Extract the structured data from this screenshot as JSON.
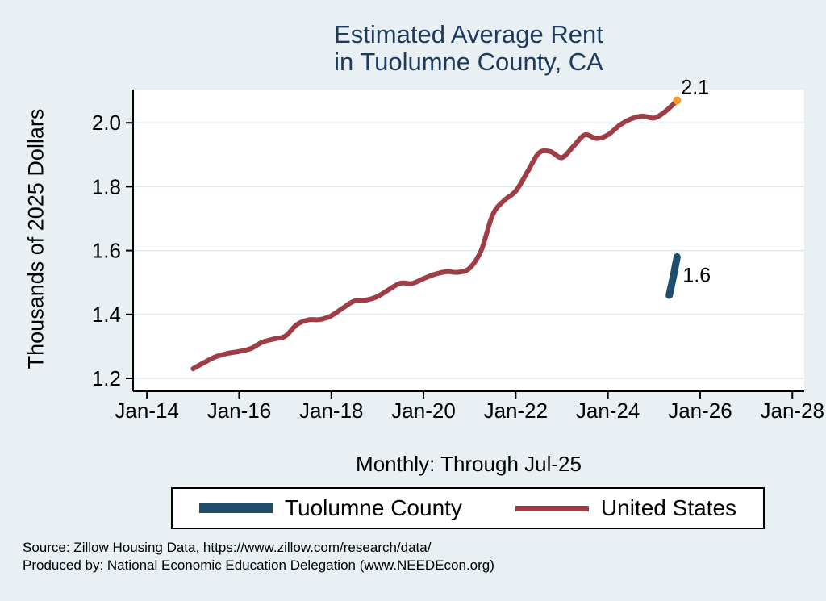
{
  "colors": {
    "background": "#e9f0f4",
    "plot_background": "#ffffff",
    "gridline": "#dce8ef",
    "axis": "#000000",
    "title_text": "#1e3a5e",
    "tuolumne_blue": "#1f4e6b",
    "us_red": "#9e3d45",
    "endpoint_orange": "#f59b22"
  },
  "title": {
    "line1": "Estimated Average Rent",
    "line2": "in Tuolumne County, CA"
  },
  "y_axis": {
    "title": "Thousands of 2025 Dollars"
  },
  "subtitle": "Monthly: Through Jul-25",
  "legend": {
    "items": [
      {
        "label": "Tuolumne County",
        "color": "#1f4e6b"
      },
      {
        "label": "United States",
        "color": "#9e3d45"
      }
    ]
  },
  "source": {
    "line1": "Source: Zillow Housing Data, https://www.zillow.com/research/data/",
    "line2": "Produced by: National Economic Education Delegation (www.NEEDEcon.org)"
  },
  "chart_data": {
    "type": "line",
    "title": "Estimated Average Rent in Tuolumne County, CA",
    "subtitle": "Monthly: Through Jul-25",
    "ylabel": "Thousands of 2025 Dollars",
    "grid": true,
    "legend_position": "bottom",
    "x_ticks": [
      {
        "value": 2014,
        "label": "Jan-14"
      },
      {
        "value": 2016,
        "label": "Jan-16"
      },
      {
        "value": 2018,
        "label": "Jan-18"
      },
      {
        "value": 2020,
        "label": "Jan-20"
      },
      {
        "value": 2022,
        "label": "Jan-22"
      },
      {
        "value": 2024,
        "label": "Jan-24"
      },
      {
        "value": 2026,
        "label": "Jan-26"
      },
      {
        "value": 2028,
        "label": "Jan-28"
      }
    ],
    "y_ticks": [
      {
        "value": 1.2,
        "label": "1.2"
      },
      {
        "value": 1.4,
        "label": "1.4"
      },
      {
        "value": 1.6,
        "label": "1.6"
      },
      {
        "value": 1.8,
        "label": "1.8"
      },
      {
        "value": 2.0,
        "label": "2.0"
      }
    ],
    "xlim_years": [
      2013.7,
      2028.26
    ],
    "ylim": [
      1.16,
      2.1
    ],
    "series": [
      {
        "name": "United States",
        "color": "#9e3d45",
        "stroke_width": 6,
        "smooth": true,
        "end_marker_color": "#f59b22",
        "end_label": "2.1",
        "end_label_dx": 5,
        "end_label_dy": -8,
        "x": [
          2015.0,
          2015.25,
          2015.5,
          2015.75,
          2016.0,
          2016.25,
          2016.5,
          2016.75,
          2017.0,
          2017.25,
          2017.5,
          2017.75,
          2018.0,
          2018.25,
          2018.5,
          2018.75,
          2019.0,
          2019.25,
          2019.5,
          2019.75,
          2020.0,
          2020.25,
          2020.5,
          2020.75,
          2021.0,
          2021.25,
          2021.5,
          2021.75,
          2022.0,
          2022.25,
          2022.5,
          2022.75,
          2023.0,
          2023.25,
          2023.5,
          2023.75,
          2024.0,
          2024.25,
          2024.5,
          2024.75,
          2025.0,
          2025.25,
          2025.5
        ],
        "values": [
          1.23,
          1.25,
          1.268,
          1.278,
          1.284,
          1.293,
          1.313,
          1.323,
          1.332,
          1.368,
          1.383,
          1.384,
          1.396,
          1.42,
          1.442,
          1.445,
          1.456,
          1.478,
          1.498,
          1.497,
          1.512,
          1.526,
          1.534,
          1.532,
          1.545,
          1.6,
          1.712,
          1.757,
          1.786,
          1.845,
          1.905,
          1.91,
          1.891,
          1.926,
          1.962,
          1.951,
          1.962,
          1.992,
          2.012,
          2.021,
          2.015,
          2.036,
          2.07
        ]
      },
      {
        "name": "Tuolumne County",
        "color": "#1f4e6b",
        "stroke_width": 9,
        "smooth": false,
        "end_label": "1.6",
        "end_label_dx": 7,
        "end_label_dy": 31,
        "x": [
          2025.33,
          2025.42,
          2025.5
        ],
        "values": [
          1.46,
          1.52,
          1.58
        ]
      }
    ]
  }
}
